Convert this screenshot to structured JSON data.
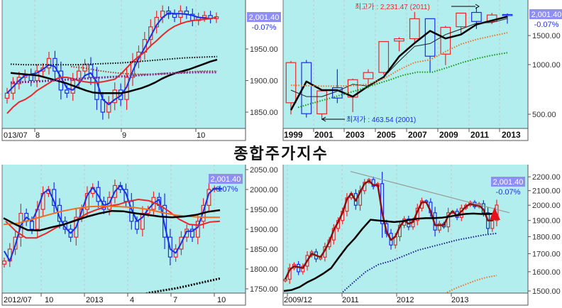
{
  "title": "종합주가지수",
  "colors": {
    "plot_bg": "#b2eeee",
    "up": "#e8282a",
    "down": "#1a2ee8",
    "price_box": "#8f8ff2",
    "change": "#2233dd"
  },
  "chart_data": [
    {
      "id": "daily",
      "type": "candlestick",
      "period": "daily",
      "price_label": "2,001.40",
      "change_label": "-0.07%",
      "y_ticks": [
        "1950.00",
        "1900.00",
        "1850.00"
      ],
      "y_tick_values": [
        1950,
        1900,
        1850
      ],
      "scale": "linear",
      "x_labels": [
        "013/07",
        "8",
        "9",
        "10"
      ],
      "close": [
        1880,
        1895,
        1905,
        1910,
        1900,
        1915,
        1920,
        1935,
        1915,
        1885,
        1880,
        1900,
        1915,
        1925,
        1905,
        1870,
        1850,
        1865,
        1885,
        1870,
        1905,
        1930,
        1945,
        1965,
        1985,
        2000,
        2010,
        2005,
        2000,
        2010,
        2005,
        1995,
        2000,
        2003,
        1998,
        2001
      ],
      "lines": [
        {
          "name": "MA5",
          "color": "#1a2ee8",
          "style": "solid",
          "width": 2,
          "values": [
            1880,
            1890,
            1900,
            1908,
            1910,
            1912,
            1918,
            1925,
            1922,
            1905,
            1888,
            1885,
            1895,
            1908,
            1912,
            1898,
            1870,
            1862,
            1870,
            1876,
            1890,
            1915,
            1935,
            1952,
            1970,
            1988,
            2000,
            2007,
            2006,
            2006,
            2005,
            2003,
            2000,
            1999,
            1998,
            2000
          ]
        },
        {
          "name": "MA20",
          "color": "#e8282a",
          "style": "solid",
          "width": 2,
          "values": [
            1848,
            1858,
            1866,
            1870,
            1876,
            1884,
            1890,
            1896,
            1902,
            1905,
            1905,
            1903,
            1900,
            1898,
            1897,
            1897,
            1898,
            1900,
            1902,
            1910,
            1920,
            1930,
            1938,
            1945,
            1955,
            1963,
            1972,
            1980,
            1986,
            1990,
            1993,
            1995,
            1996,
            1997,
            1998,
            2000
          ]
        },
        {
          "name": "MA60",
          "color": "#000000",
          "style": "solid",
          "width": 2.5,
          "values": [
            1912,
            1911,
            1910,
            1909,
            1908,
            1905,
            1902,
            1899,
            1896,
            1892,
            1888,
            1884,
            1881,
            1880,
            1880,
            1880,
            1880,
            1882,
            1885,
            1888,
            1892,
            1897,
            1903,
            1908,
            1912,
            1915,
            1918,
            1922,
            1926,
            1930,
            1933
          ]
        },
        {
          "name": "MA120",
          "color": "#000000",
          "style": "dotted",
          "width": 2,
          "values": [
            1926,
            1925,
            1925,
            1925,
            1925,
            1926,
            1927,
            1928,
            1930,
            1932,
            1934,
            1936,
            1937,
            1938
          ]
        },
        {
          "name": "MA_brown",
          "color": "#a0401a",
          "style": "dotted",
          "width": 2,
          "values": [
            1922,
            1920,
            1916,
            1913,
            1911,
            1910,
            1910,
            1911,
            1912,
            1914,
            1915,
            1915
          ]
        },
        {
          "name": "MA_purple",
          "color": "#8a2a9a",
          "style": "dotted",
          "width": 3,
          "values": [
            1897,
            1898,
            1900,
            1902,
            1904,
            1906,
            1908,
            1910,
            1912,
            1913,
            1913
          ]
        }
      ]
    },
    {
      "id": "yearly",
      "type": "candlestick",
      "period": "yearly",
      "price_label": "2,001.40",
      "change_label": "-0.07%",
      "y_ticks": [
        "1500.00",
        "1000.00",
        "500.00"
      ],
      "y_tick_values": [
        1500,
        1000,
        500
      ],
      "scale": "log",
      "x_labels": [
        "1999",
        "2001",
        "2003",
        "2005",
        "2007",
        "2009",
        "2011",
        "2013"
      ],
      "annotations": {
        "high": "최고가 : 2,231.47 (2011)",
        "low": "최저가 : 463.54 (2001)"
      },
      "candles": [
        [
          587,
          1052,
          499,
          1028
        ],
        [
          1028,
          1066,
          478,
          504
        ],
        [
          503,
          704,
          463.54,
          693
        ],
        [
          724,
          937,
          584,
          627
        ],
        [
          635,
          822,
          515,
          810
        ],
        [
          821,
          936,
          719,
          895
        ],
        [
          896,
          1379,
          870,
          1379
        ],
        [
          1389,
          1464,
          1203,
          1434
        ],
        [
          1435,
          2085,
          1345,
          1897
        ],
        [
          1897,
          1888,
          892,
          1124
        ],
        [
          1157,
          1718,
          992,
          1682
        ],
        [
          1696,
          2052,
          1532,
          2051
        ],
        [
          2070,
          2231.47,
          1644,
          1825
        ],
        [
          1826,
          2057,
          1758,
          1997
        ],
        [
          2011,
          2042,
          1770,
          2001
        ]
      ],
      "lines": [
        {
          "name": "MA3",
          "color": "#000000",
          "style": "solid",
          "width": 2.5,
          "values": [
            530,
            790,
            700,
            700,
            640,
            740,
            840,
            1120,
            1350,
            1600,
            1440,
            1520,
            1750,
            1850,
            1950
          ]
        },
        {
          "name": "MA5",
          "color": "#222222",
          "style": "solid",
          "width": 1,
          "values": [
            700,
            640,
            640,
            690,
            760,
            740,
            840,
            1050,
            1290,
            1340,
            1520,
            1640,
            1780,
            1800,
            1900
          ]
        },
        {
          "name": "MA10",
          "color": "#f07020",
          "style": "dotted",
          "width": 2,
          "values": [
            750,
            745,
            740,
            740,
            745,
            760,
            820,
            930,
            1030,
            1070,
            1200,
            1330,
            1420,
            1490,
            1560
          ]
        },
        {
          "name": "MA20",
          "color": "#119911",
          "style": "dotted",
          "width": 2,
          "values": [
            550,
            585,
            620,
            660,
            700,
            750,
            800,
            860,
            900,
            900,
            960,
            1030,
            1090,
            1140,
            1180
          ]
        }
      ]
    },
    {
      "id": "weekly",
      "type": "candlestick",
      "period": "weekly",
      "price_label": "2,001.40",
      "change_label": "-0.07%",
      "y_ticks": [
        "2050.00",
        "2000.00",
        "1950.00",
        "1900.00",
        "1850.00",
        "1800.00",
        "1750.00"
      ],
      "y_tick_values": [
        2050,
        2000,
        1950,
        1900,
        1850,
        1800,
        1750
      ],
      "scale": "linear",
      "x_labels": [
        "2012/07",
        "10",
        "2013",
        "4",
        "7",
        "10"
      ],
      "close": [
        1820,
        1850,
        1880,
        1940,
        1920,
        1900,
        1950,
        1990,
        2000,
        1960,
        1920,
        1900,
        1880,
        1930,
        1950,
        1990,
        2005,
        1970,
        1950,
        1980,
        2010,
        2000,
        1970,
        1920,
        1900,
        1940,
        1950,
        1980,
        1960,
        1880,
        1830,
        1850,
        1880,
        1900,
        1880,
        1920,
        1960,
        2000,
        2003,
        2001
      ],
      "lines": [
        {
          "name": "MA5",
          "color": "#1a2ee8",
          "style": "solid",
          "width": 2,
          "values": [
            1845,
            1820,
            1860,
            1910,
            1930,
            1920,
            1950,
            1990,
            2000,
            1970,
            1930,
            1905,
            1890,
            1905,
            1945,
            1985,
            2005,
            1985,
            1960,
            1965,
            1995,
            2010,
            1990,
            1950,
            1920,
            1930,
            1950,
            1965,
            1975,
            1910,
            1850,
            1840,
            1865,
            1895,
            1895,
            1905,
            1945,
            1990,
            2003,
            2001
          ]
        },
        {
          "name": "MA20",
          "color": "#e8282a",
          "style": "solid",
          "width": 2,
          "values": [
            1920,
            1895,
            1878,
            1878,
            1890,
            1905,
            1915,
            1925,
            1940,
            1950,
            1958,
            1962,
            1970,
            1975,
            1972,
            1962,
            1945,
            1925,
            1912,
            1910,
            1918,
            1920
          ]
        },
        {
          "name": "MA_orange",
          "color": "#f07020",
          "style": "solid",
          "width": 2,
          "values": [
            1912,
            1915,
            1925,
            1935,
            1945,
            1952,
            1957,
            1958,
            1957,
            1955,
            1950,
            1942,
            1935,
            1932,
            1930,
            1930
          ]
        },
        {
          "name": "MA60",
          "color": "#000000",
          "style": "solid",
          "width": 2.5,
          "values": [
            1928,
            1912,
            1898,
            1897,
            1905,
            1912,
            1922,
            1932,
            1940,
            1946,
            1945,
            1940,
            1936,
            1932,
            1930,
            1932,
            1936,
            1944,
            1948
          ]
        },
        {
          "name": "MA120",
          "color": "#000000",
          "style": "dotted",
          "width": 3,
          "values": [
            1700,
            1715,
            1730,
            1740,
            1746,
            1752,
            1760,
            1768,
            1776
          ]
        }
      ]
    },
    {
      "id": "monthly",
      "type": "candlestick",
      "period": "long-term",
      "price_label": "2,001.40",
      "change_label": "-0.07%",
      "y_ticks": [
        "2200.00",
        "2100.00",
        "2000.00",
        "1900.00",
        "1800.00",
        "1700.00",
        "1600.00",
        "1500.00"
      ],
      "y_tick_values": [
        2200,
        2100,
        2000,
        1900,
        1800,
        1700,
        1600,
        1500
      ],
      "scale": "log",
      "x_labels": [
        "2009/12",
        "2011",
        "2012",
        "2013"
      ],
      "close": [
        1560,
        1620,
        1640,
        1600,
        1630,
        1690,
        1710,
        1670,
        1680,
        1740,
        1780,
        1850,
        1900,
        1960,
        2050,
        2080,
        2000,
        2100,
        2160,
        2180,
        2130,
        2150,
        1880,
        1820,
        1750,
        1800,
        1870,
        1910,
        1860,
        1900,
        1980,
        2030,
        2020,
        1950,
        1840,
        1880,
        1860,
        1950,
        1960,
        1920,
        1980,
        2000,
        2020,
        1990,
        2010,
        1950,
        1850,
        1900,
        2001
      ],
      "lines": [
        {
          "name": "MA_short",
          "color": "#8b1010",
          "style": "solid",
          "width": 2.5,
          "values": [
            1560,
            1610,
            1630,
            1625,
            1620,
            1660,
            1700,
            1690,
            1680,
            1720,
            1770,
            1840,
            1890,
            1950,
            2040,
            2080,
            2030,
            2090,
            2150,
            2170,
            2140,
            2140,
            1950,
            1830,
            1780,
            1800,
            1860,
            1900,
            1880,
            1890,
            1960,
            2020,
            2020,
            1960,
            1870,
            1870,
            1870,
            1930,
            1960,
            1930,
            1960,
            1990,
            2010,
            2000,
            2000,
            1970,
            1900,
            1900,
            1940
          ]
        },
        {
          "name": "MA_long",
          "color": "#000000",
          "style": "solid",
          "width": 2.5,
          "values": [
            1500,
            1505,
            1520,
            1545,
            1565,
            1590,
            1620,
            1680,
            1740,
            1790,
            1850,
            1905,
            1900,
            1895,
            1890,
            1895,
            1905,
            1912,
            1915,
            1915,
            1918,
            1925,
            1935,
            1942,
            1945,
            1942,
            1942,
            1945
          ]
        },
        {
          "name": "MA_navy",
          "color": "#1a1a8a",
          "style": "dotted",
          "width": 2,
          "values": [
            1420,
            1480,
            1540,
            1600,
            1640,
            1660,
            1690,
            1720,
            1740,
            1760,
            1780,
            1795,
            1810,
            1820
          ]
        },
        {
          "name": "MA_orange",
          "color": "#f07020",
          "style": "dotted",
          "width": 2,
          "values": [
            1430,
            1460,
            1490,
            1515,
            1535,
            1555,
            1570,
            1580
          ]
        },
        {
          "name": "trendline",
          "color": "#999999",
          "style": "solid",
          "width": 1.2,
          "values": [
            2240,
            1950
          ]
        }
      ]
    }
  ]
}
